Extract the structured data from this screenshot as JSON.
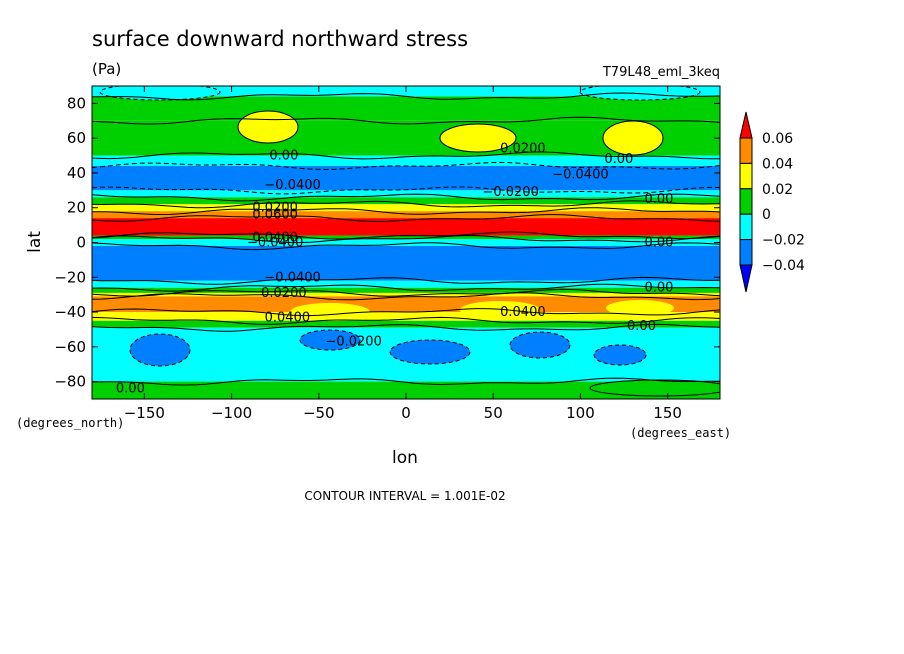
{
  "chart_data": {
    "type": "heatmap",
    "title": "surface downward northward stress",
    "units": "(Pa)",
    "experiment": "T79L48_eml_3keq",
    "xlabel": "lon",
    "ylabel": "lat",
    "x_units": "(degrees_east)",
    "y_units": "(degrees_north)",
    "xlim": [
      -180,
      180
    ],
    "ylim": [
      -90,
      90
    ],
    "x_ticks": [
      -150,
      -100,
      -50,
      0,
      50,
      100,
      150
    ],
    "y_ticks": [
      -80,
      -60,
      -40,
      -20,
      0,
      20,
      40,
      60,
      80
    ],
    "colorbar_levels": [
      "0.06",
      "0.04",
      "0.02",
      "0",
      "−0.02",
      "−0.04"
    ],
    "colorbar_colors": [
      "#ff0000",
      "#ff8c00",
      "#ffff00",
      "#00d000",
      "#00ffff",
      "#0080ff",
      "#0000ff"
    ],
    "zonal_bands": [
      {
        "lat_min": 84,
        "lat_max": 90,
        "value": -0.01
      },
      {
        "lat_min": 70,
        "lat_max": 84,
        "value": 0.01
      },
      {
        "lat_min": 50,
        "lat_max": 70,
        "value": 0.01
      },
      {
        "lat_min": 44,
        "lat_max": 50,
        "value": -0.01
      },
      {
        "lat_min": 30,
        "lat_max": 44,
        "value": -0.03
      },
      {
        "lat_min": 26,
        "lat_max": 30,
        "value": -0.01
      },
      {
        "lat_min": 22,
        "lat_max": 26,
        "value": 0.01
      },
      {
        "lat_min": 18,
        "lat_max": 22,
        "value": 0.03
      },
      {
        "lat_min": 14,
        "lat_max": 18,
        "value": 0.05
      },
      {
        "lat_min": 4,
        "lat_max": 14,
        "value": 0.07
      },
      {
        "lat_min": 2,
        "lat_max": 4,
        "value": 0.01
      },
      {
        "lat_min": -2,
        "lat_max": 2,
        "value": -0.01
      },
      {
        "lat_min": -22,
        "lat_max": -2,
        "value": -0.03
      },
      {
        "lat_min": -26,
        "lat_max": -22,
        "value": -0.01
      },
      {
        "lat_min": -29,
        "lat_max": -26,
        "value": 0.01
      },
      {
        "lat_min": -31,
        "lat_max": -29,
        "value": 0.03
      },
      {
        "lat_min": -40,
        "lat_max": -31,
        "value": 0.05
      },
      {
        "lat_min": -45,
        "lat_max": -40,
        "value": 0.03
      },
      {
        "lat_min": -49,
        "lat_max": -45,
        "value": 0.01
      },
      {
        "lat_min": -80,
        "lat_max": -49,
        "value": -0.01
      },
      {
        "lat_min": -90,
        "lat_max": -80,
        "value": 0.01
      }
    ],
    "contour_labels": [
      {
        "text": "0.00",
        "lon": -70,
        "lat": 50
      },
      {
        "text": "0.0200",
        "lon": 67,
        "lat": 54
      },
      {
        "text": "0.00",
        "lon": 122,
        "lat": 48
      },
      {
        "text": "−0.0400",
        "lon": -65,
        "lat": 33
      },
      {
        "text": "−0.0400",
        "lon": 100,
        "lat": 39
      },
      {
        "text": "−0.0200",
        "lon": 60,
        "lat": 29
      },
      {
        "text": "0.00",
        "lon": 145,
        "lat": 25
      },
      {
        "text": "0.0200",
        "lon": -75,
        "lat": 20
      },
      {
        "text": "0.0600",
        "lon": -75,
        "lat": 16
      },
      {
        "text": "0.0400",
        "lon": -75,
        "lat": 3
      },
      {
        "text": "−0.0400",
        "lon": -75,
        "lat": 0
      },
      {
        "text": "0.00",
        "lon": 145,
        "lat": 0
      },
      {
        "text": "−0.0400",
        "lon": -65,
        "lat": -20
      },
      {
        "text": "0.0200",
        "lon": -70,
        "lat": -29
      },
      {
        "text": "0.00",
        "lon": 145,
        "lat": -26
      },
      {
        "text": "0.0400",
        "lon": 67,
        "lat": -40
      },
      {
        "text": "0.0400",
        "lon": -68,
        "lat": -43
      },
      {
        "text": "0.00",
        "lon": 135,
        "lat": -48
      },
      {
        "text": "−0.0200",
        "lon": -30,
        "lat": -57
      },
      {
        "text": "0.00",
        "lon": -158,
        "lat": -84
      }
    ],
    "contour_interval_label": "CONTOUR INTERVAL = 1.001E-02"
  }
}
